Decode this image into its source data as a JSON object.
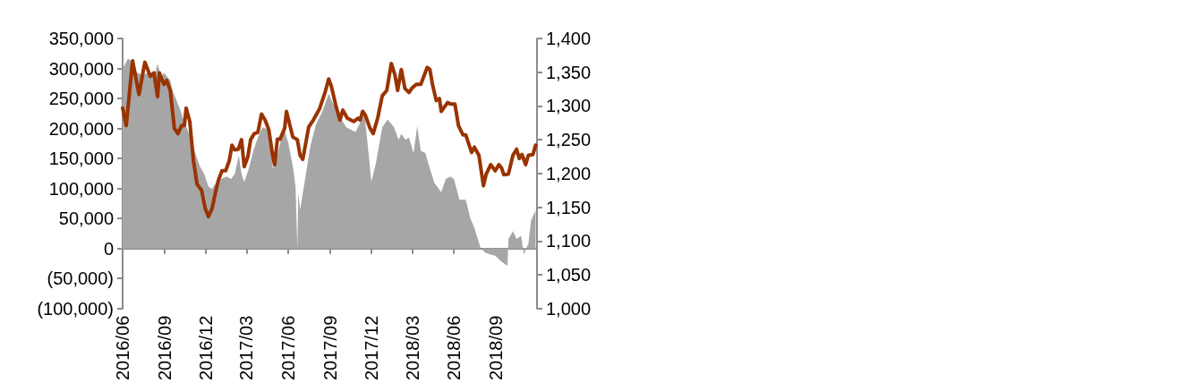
{
  "chart_data": [
    {
      "type": "area",
      "marker": "none",
      "xlim": [
        "2016-06-01",
        "2018-12-01"
      ],
      "xticks": [
        {
          "value": "2016-06-01",
          "label": "2016/06"
        },
        {
          "value": "2016-09-01",
          "label": "2016/09"
        },
        {
          "value": "2016-12-01",
          "label": "2016/12"
        },
        {
          "value": "2017-03-01",
          "label": "2017/03"
        },
        {
          "value": "2017-06-01",
          "label": "2017/06"
        },
        {
          "value": "2017-09-01",
          "label": "2017/09"
        },
        {
          "value": "2017-12-01",
          "label": "2017/12"
        },
        {
          "value": "2018-03-01",
          "label": "2018/03"
        },
        {
          "value": "2018-06-01",
          "label": "2018/06"
        },
        {
          "value": "2018-09-01",
          "label": "2018/09"
        }
      ],
      "ylim": [
        -100000,
        350000
      ],
      "yticks": [
        {
          "value": -100000,
          "label": "(100,000)"
        },
        {
          "value": -50000,
          "label": "(50,000)"
        },
        0,
        {
          "value": 50000,
          "label": "50,000"
        },
        {
          "value": 100000,
          "label": "100,000"
        },
        {
          "value": 150000,
          "label": "150,000"
        },
        {
          "value": 200000,
          "label": "200,000"
        },
        {
          "value": 250000,
          "label": "250,000"
        },
        {
          "value": 300000,
          "label": "300,000"
        },
        {
          "value": 350000,
          "label": "350,000"
        }
      ],
      "y2lim": [
        1000,
        1400
      ],
      "y2ticks": [
        {
          "value": 1000,
          "label": "1,000"
        },
        {
          "value": 1050,
          "label": "1,050"
        },
        {
          "value": 1100,
          "label": "1,100"
        },
        {
          "value": 1150,
          "label": "1,150"
        },
        {
          "value": 1200,
          "label": "1,200"
        },
        {
          "value": 1250,
          "label": "1,250"
        },
        {
          "value": 1300,
          "label": "1,300"
        },
        {
          "value": 1350,
          "label": "1,350"
        },
        {
          "value": 1400,
          "label": "1,400"
        }
      ],
      "series": [
        {
          "type": "area",
          "color": "#a6a6a6",
          "x": [
            "2016-06-01",
            "2016-06-13",
            "2016-06-21",
            "2016-07-03",
            "2016-07-16",
            "2016-07-30",
            "2016-08-11",
            "2016-08-17",
            "2016-08-25",
            "2016-08-31",
            "2016-09-14",
            "2016-09-19",
            "2016-10-03",
            "2016-10-17",
            "2016-10-29",
            "2016-11-08",
            "2016-11-18",
            "2016-11-28",
            "2016-12-07",
            "2016-12-15",
            "2016-12-21",
            "2017-01-04",
            "2017-01-16",
            "2017-01-26",
            "2017-02-03",
            "2017-02-12",
            "2017-02-18",
            "2017-02-24",
            "2017-03-06",
            "2017-03-16",
            "2017-03-26",
            "2017-04-05",
            "2017-04-19",
            "2017-04-28",
            "2017-05-08",
            "2017-05-22",
            "2017-06-01",
            "2017-06-11",
            "2017-06-17",
            "2017-06-21",
            "2017-06-23",
            "2017-06-27",
            "2017-07-07",
            "2017-07-20",
            "2017-08-01",
            "2017-08-15",
            "2017-08-29",
            "2017-09-18",
            "2017-10-07",
            "2017-10-27",
            "2017-11-16",
            "2017-11-26",
            "2017-12-01",
            "2017-12-11",
            "2017-12-25",
            "2018-01-06",
            "2018-01-20",
            "2018-01-30",
            "2018-02-05",
            "2018-02-14",
            "2018-02-22",
            "2018-03-04",
            "2018-03-12",
            "2018-03-20",
            "2018-03-30",
            "2018-04-09",
            "2018-04-19",
            "2018-05-04",
            "2018-05-14",
            "2018-05-24",
            "2018-06-01",
            "2018-06-13",
            "2018-06-27",
            "2018-07-07",
            "2018-07-16",
            "2018-07-30",
            "2018-08-09",
            "2018-08-19",
            "2018-08-31",
            "2018-09-14",
            "2018-09-27",
            "2018-09-29",
            "2018-10-09",
            "2018-10-17",
            "2018-10-27",
            "2018-11-02",
            "2018-11-12",
            "2018-11-18",
            "2018-11-28"
          ],
          "values": [
            299000,
            317000,
            311000,
            293000,
            289000,
            295000,
            289000,
            308000,
            286000,
            293000,
            280000,
            263000,
            237000,
            207000,
            185000,
            159000,
            137000,
            124000,
            103000,
            99000,
            107000,
            116000,
            120000,
            116000,
            124000,
            155000,
            124000,
            111000,
            133000,
            163000,
            185000,
            202000,
            198000,
            133000,
            155000,
            202000,
            176000,
            137000,
            103000,
            0,
            94000,
            64000,
            111000,
            172000,
            207000,
            228000,
            258000,
            224000,
            202000,
            194000,
            224000,
            150000,
            111000,
            142000,
            202000,
            215000,
            202000,
            181000,
            191000,
            181000,
            185000,
            159000,
            204000,
            163000,
            159000,
            133000,
            109000,
            94000,
            116000,
            120000,
            116000,
            81000,
            81000,
            51000,
            34000,
            0,
            -7000,
            -10000,
            -12000,
            -22000,
            -29000,
            16000,
            29000,
            16000,
            21000,
            -10000,
            8000,
            47000,
            64000
          ]
        },
        {
          "type": "line",
          "axis": "y2",
          "color": "#993300",
          "line_style": "solid",
          "x": [
            "2016-06-01",
            "2016-06-09",
            "2016-06-23",
            "2016-07-07",
            "2016-07-20",
            "2016-08-01",
            "2016-08-09",
            "2016-08-17",
            "2016-08-21",
            "2016-08-31",
            "2016-09-06",
            "2016-09-14",
            "2016-09-23",
            "2016-10-01",
            "2016-10-09",
            "2016-10-15",
            "2016-10-19",
            "2016-10-27",
            "2016-11-04",
            "2016-11-12",
            "2016-11-22",
            "2016-11-30",
            "2016-12-07",
            "2016-12-15",
            "2016-12-21",
            "2016-12-29",
            "2017-01-06",
            "2017-01-14",
            "2017-01-22",
            "2017-01-28",
            "2017-02-03",
            "2017-02-11",
            "2017-02-18",
            "2017-02-24",
            "2017-03-04",
            "2017-03-10",
            "2017-03-18",
            "2017-03-26",
            "2017-04-03",
            "2017-04-11",
            "2017-04-19",
            "2017-04-28",
            "2017-05-02",
            "2017-05-08",
            "2017-05-14",
            "2017-05-24",
            "2017-05-28",
            "2017-06-11",
            "2017-06-21",
            "2017-06-27",
            "2017-07-03",
            "2017-07-16",
            "2017-07-26",
            "2017-08-09",
            "2017-08-21",
            "2017-08-29",
            "2017-09-04",
            "2017-09-14",
            "2017-09-23",
            "2017-09-29",
            "2017-10-09",
            "2017-10-23",
            "2017-11-02",
            "2017-11-06",
            "2017-11-12",
            "2017-11-18",
            "2017-11-28",
            "2017-12-05",
            "2017-12-15",
            "2017-12-25",
            "2018-01-04",
            "2018-01-14",
            "2018-01-22",
            "2018-01-28",
            "2018-02-05",
            "2018-02-13",
            "2018-02-22",
            "2018-02-28",
            "2018-03-10",
            "2018-03-20",
            "2018-04-03",
            "2018-04-09",
            "2018-04-15",
            "2018-04-23",
            "2018-04-30",
            "2018-05-04",
            "2018-05-18",
            "2018-05-24",
            "2018-06-03",
            "2018-06-11",
            "2018-06-21",
            "2018-06-27",
            "2018-07-10",
            "2018-07-16",
            "2018-07-26",
            "2018-08-05",
            "2018-08-11",
            "2018-08-21",
            "2018-08-31",
            "2018-09-08",
            "2018-09-14",
            "2018-09-19",
            "2018-09-29",
            "2018-10-09",
            "2018-10-17",
            "2018-10-23",
            "2018-10-29",
            "2018-11-06",
            "2018-11-12",
            "2018-11-22",
            "2018-11-28"
          ],
          "values": [
            1297,
            1271,
            1367,
            1317,
            1365,
            1344,
            1349,
            1314,
            1349,
            1332,
            1338,
            1323,
            1267,
            1259,
            1271,
            1271,
            1297,
            1277,
            1219,
            1184,
            1175,
            1148,
            1136,
            1148,
            1167,
            1190,
            1204,
            1204,
            1219,
            1242,
            1235,
            1236,
            1250,
            1210,
            1225,
            1250,
            1259,
            1261,
            1288,
            1279,
            1265,
            1225,
            1213,
            1251,
            1251,
            1267,
            1292,
            1254,
            1250,
            1227,
            1221,
            1269,
            1279,
            1296,
            1320,
            1340,
            1329,
            1300,
            1279,
            1294,
            1282,
            1277,
            1282,
            1279,
            1292,
            1286,
            1267,
            1259,
            1282,
            1315,
            1323,
            1363,
            1346,
            1323,
            1354,
            1326,
            1320,
            1326,
            1332,
            1332,
            1357,
            1354,
            1331,
            1308,
            1311,
            1292,
            1305,
            1303,
            1303,
            1271,
            1257,
            1257,
            1231,
            1239,
            1227,
            1182,
            1199,
            1213,
            1204,
            1213,
            1208,
            1198,
            1199,
            1227,
            1236,
            1222,
            1228,
            1213,
            1227,
            1228,
            1242
          ]
        }
      ]
    }
  ]
}
